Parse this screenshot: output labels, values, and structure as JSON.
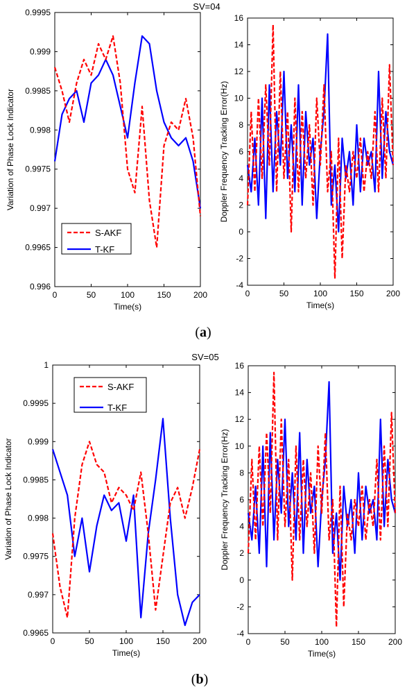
{
  "panel_a": {
    "title": "SV=04",
    "label_open": "(",
    "label_letter": "a",
    "label_close": ")"
  },
  "panel_b": {
    "title": "SV=05",
    "label_open": "(",
    "label_letter": "b",
    "label_close": ")"
  },
  "colors": {
    "s_akf": "#ff0000",
    "t_kf": "#0000ff",
    "axis": "#000000"
  },
  "chart_data": [
    {
      "type": "line",
      "panel": "a",
      "xlabel": "Time(s)",
      "ylabel": "Variation of Phase Lock Indicator",
      "xlim": [
        0,
        200
      ],
      "ylim": [
        0.996,
        0.9995
      ],
      "xticks": [
        0,
        50,
        100,
        150,
        200
      ],
      "yticks": [
        0.996,
        0.9965,
        0.997,
        0.9975,
        0.998,
        0.9985,
        0.999,
        0.9995
      ],
      "ytick_labels": [
        "0.996",
        "0.9965",
        "0.997",
        "0.9975",
        "0.998",
        "0.9985",
        "0.999",
        "0.9995"
      ],
      "legend_position": "bottom-left",
      "grid": false,
      "x": [
        0,
        10,
        20,
        30,
        40,
        50,
        60,
        70,
        80,
        90,
        100,
        110,
        120,
        130,
        140,
        150,
        160,
        170,
        180,
        190,
        200
      ],
      "series": [
        {
          "name": "S-AKF",
          "style": "dashed",
          "values": [
            0.9988,
            0.9985,
            0.9981,
            0.9986,
            0.9989,
            0.9987,
            0.9991,
            0.9989,
            0.9992,
            0.9986,
            0.9975,
            0.9972,
            0.9983,
            0.9971,
            0.9965,
            0.9978,
            0.9981,
            0.998,
            0.9984,
            0.9979,
            0.9969
          ]
        },
        {
          "name": "T-KF",
          "style": "solid",
          "values": [
            0.9976,
            0.9982,
            0.9984,
            0.9985,
            0.9981,
            0.9986,
            0.9987,
            0.9989,
            0.9987,
            0.9983,
            0.9979,
            0.9986,
            0.9992,
            0.9991,
            0.9985,
            0.9981,
            0.9979,
            0.9978,
            0.9979,
            0.9976,
            0.997
          ]
        }
      ]
    },
    {
      "type": "line",
      "panel": "a",
      "xlabel": "Time(s)",
      "ylabel": "Doppler Frequency Tracking Error(Hz)",
      "xlim": [
        0,
        200
      ],
      "ylim": [
        -4,
        16
      ],
      "xticks": [
        0,
        50,
        100,
        150,
        200
      ],
      "yticks": [
        -4,
        -2,
        0,
        2,
        4,
        6,
        8,
        10,
        12,
        14,
        16
      ],
      "ytick_labels": [
        "-4",
        "-2",
        "0",
        "2",
        "4",
        "6",
        "8",
        "10",
        "12",
        "14",
        "16"
      ],
      "grid": false,
      "x": [
        0,
        5,
        10,
        15,
        20,
        25,
        30,
        35,
        40,
        45,
        50,
        55,
        60,
        65,
        70,
        75,
        80,
        85,
        90,
        95,
        100,
        105,
        110,
        115,
        120,
        125,
        130,
        135,
        140,
        145,
        150,
        155,
        160,
        165,
        170,
        175,
        180,
        185,
        190,
        195,
        200
      ],
      "series": [
        {
          "name": "S-AKF",
          "style": "dashed",
          "values": [
            2,
            9,
            3,
            10,
            4,
            11,
            5,
            15.5,
            3,
            12,
            4,
            9,
            0,
            10,
            3,
            9,
            4,
            8,
            2,
            10,
            5,
            11,
            3,
            6,
            -3.5,
            7,
            -2,
            5,
            3,
            6,
            4,
            7,
            3,
            6,
            4,
            9,
            3,
            10,
            4,
            12.5,
            5
          ]
        },
        {
          "name": "T-KF",
          "style": "solid",
          "values": [
            5,
            3,
            7,
            2,
            10,
            1,
            11,
            3,
            9,
            5,
            12,
            4,
            8,
            3,
            11,
            2,
            9,
            5,
            7,
            1,
            6,
            9,
            14.8,
            2,
            5,
            0,
            7,
            4,
            6,
            2,
            8,
            3,
            7,
            5,
            6,
            3,
            12,
            4,
            9,
            6,
            5
          ]
        }
      ]
    },
    {
      "type": "line",
      "panel": "b",
      "xlabel": "Time(s)",
      "ylabel": "Variation of Phase Lock Indicator",
      "xlim": [
        0,
        200
      ],
      "ylim": [
        0.9965,
        1.0
      ],
      "xticks": [
        0,
        50,
        100,
        150,
        200
      ],
      "yticks": [
        0.9965,
        0.997,
        0.9975,
        0.998,
        0.9985,
        0.999,
        0.9995,
        1.0
      ],
      "ytick_labels": [
        "0.9965",
        "0.997",
        "0.9975",
        "0.998",
        "0.9985",
        "0.999",
        "0.9995",
        "1"
      ],
      "legend_position": "top-left",
      "grid": false,
      "x": [
        0,
        10,
        20,
        30,
        40,
        50,
        60,
        70,
        80,
        90,
        100,
        110,
        120,
        130,
        140,
        150,
        160,
        170,
        180,
        190,
        200
      ],
      "series": [
        {
          "name": "S-AKF",
          "style": "dashed",
          "values": [
            0.9978,
            0.9971,
            0.9967,
            0.998,
            0.9987,
            0.999,
            0.9987,
            0.9986,
            0.9982,
            0.9984,
            0.9983,
            0.9981,
            0.9986,
            0.9978,
            0.9968,
            0.9975,
            0.9982,
            0.9984,
            0.998,
            0.9984,
            0.9989
          ]
        },
        {
          "name": "T-KF",
          "style": "solid",
          "values": [
            0.9989,
            0.9986,
            0.9983,
            0.9975,
            0.998,
            0.9973,
            0.9979,
            0.9983,
            0.9981,
            0.9982,
            0.9977,
            0.9983,
            0.9967,
            0.9978,
            0.9985,
            0.9993,
            0.998,
            0.997,
            0.9966,
            0.9969,
            0.997
          ]
        }
      ]
    },
    {
      "type": "line",
      "panel": "b",
      "xlabel": "Time(s)",
      "ylabel": "Doppler Frequency Tracking Error(Hz)",
      "xlim": [
        0,
        200
      ],
      "ylim": [
        -4,
        16
      ],
      "xticks": [
        0,
        50,
        100,
        150,
        200
      ],
      "yticks": [
        -4,
        -2,
        0,
        2,
        4,
        6,
        8,
        10,
        12,
        14,
        16
      ],
      "ytick_labels": [
        "-4",
        "-2",
        "0",
        "2",
        "4",
        "6",
        "8",
        "10",
        "12",
        "14",
        "16"
      ],
      "grid": false,
      "x": [
        0,
        5,
        10,
        15,
        20,
        25,
        30,
        35,
        40,
        45,
        50,
        55,
        60,
        65,
        70,
        75,
        80,
        85,
        90,
        95,
        100,
        105,
        110,
        115,
        120,
        125,
        130,
        135,
        140,
        145,
        150,
        155,
        160,
        165,
        170,
        175,
        180,
        185,
        190,
        195,
        200
      ],
      "series": [
        {
          "name": "S-AKF",
          "style": "dashed",
          "values": [
            2,
            9,
            3,
            10,
            4,
            11,
            5,
            15.5,
            3,
            12,
            4,
            9,
            0,
            10,
            3,
            9,
            4,
            8,
            2,
            10,
            5,
            11,
            3,
            6,
            -3.5,
            7,
            -2,
            5,
            3,
            6,
            4,
            7,
            3,
            6,
            4,
            9,
            3,
            10,
            4,
            12.5,
            5
          ]
        },
        {
          "name": "T-KF",
          "style": "solid",
          "values": [
            5,
            3,
            7,
            2,
            10,
            1,
            11,
            3,
            9,
            5,
            12,
            4,
            8,
            3,
            11,
            2,
            9,
            5,
            7,
            1,
            6,
            9,
            14.8,
            2,
            5,
            0,
            7,
            4,
            6,
            2,
            8,
            3,
            7,
            5,
            6,
            3,
            12,
            4,
            9,
            6,
            5
          ]
        }
      ]
    }
  ]
}
